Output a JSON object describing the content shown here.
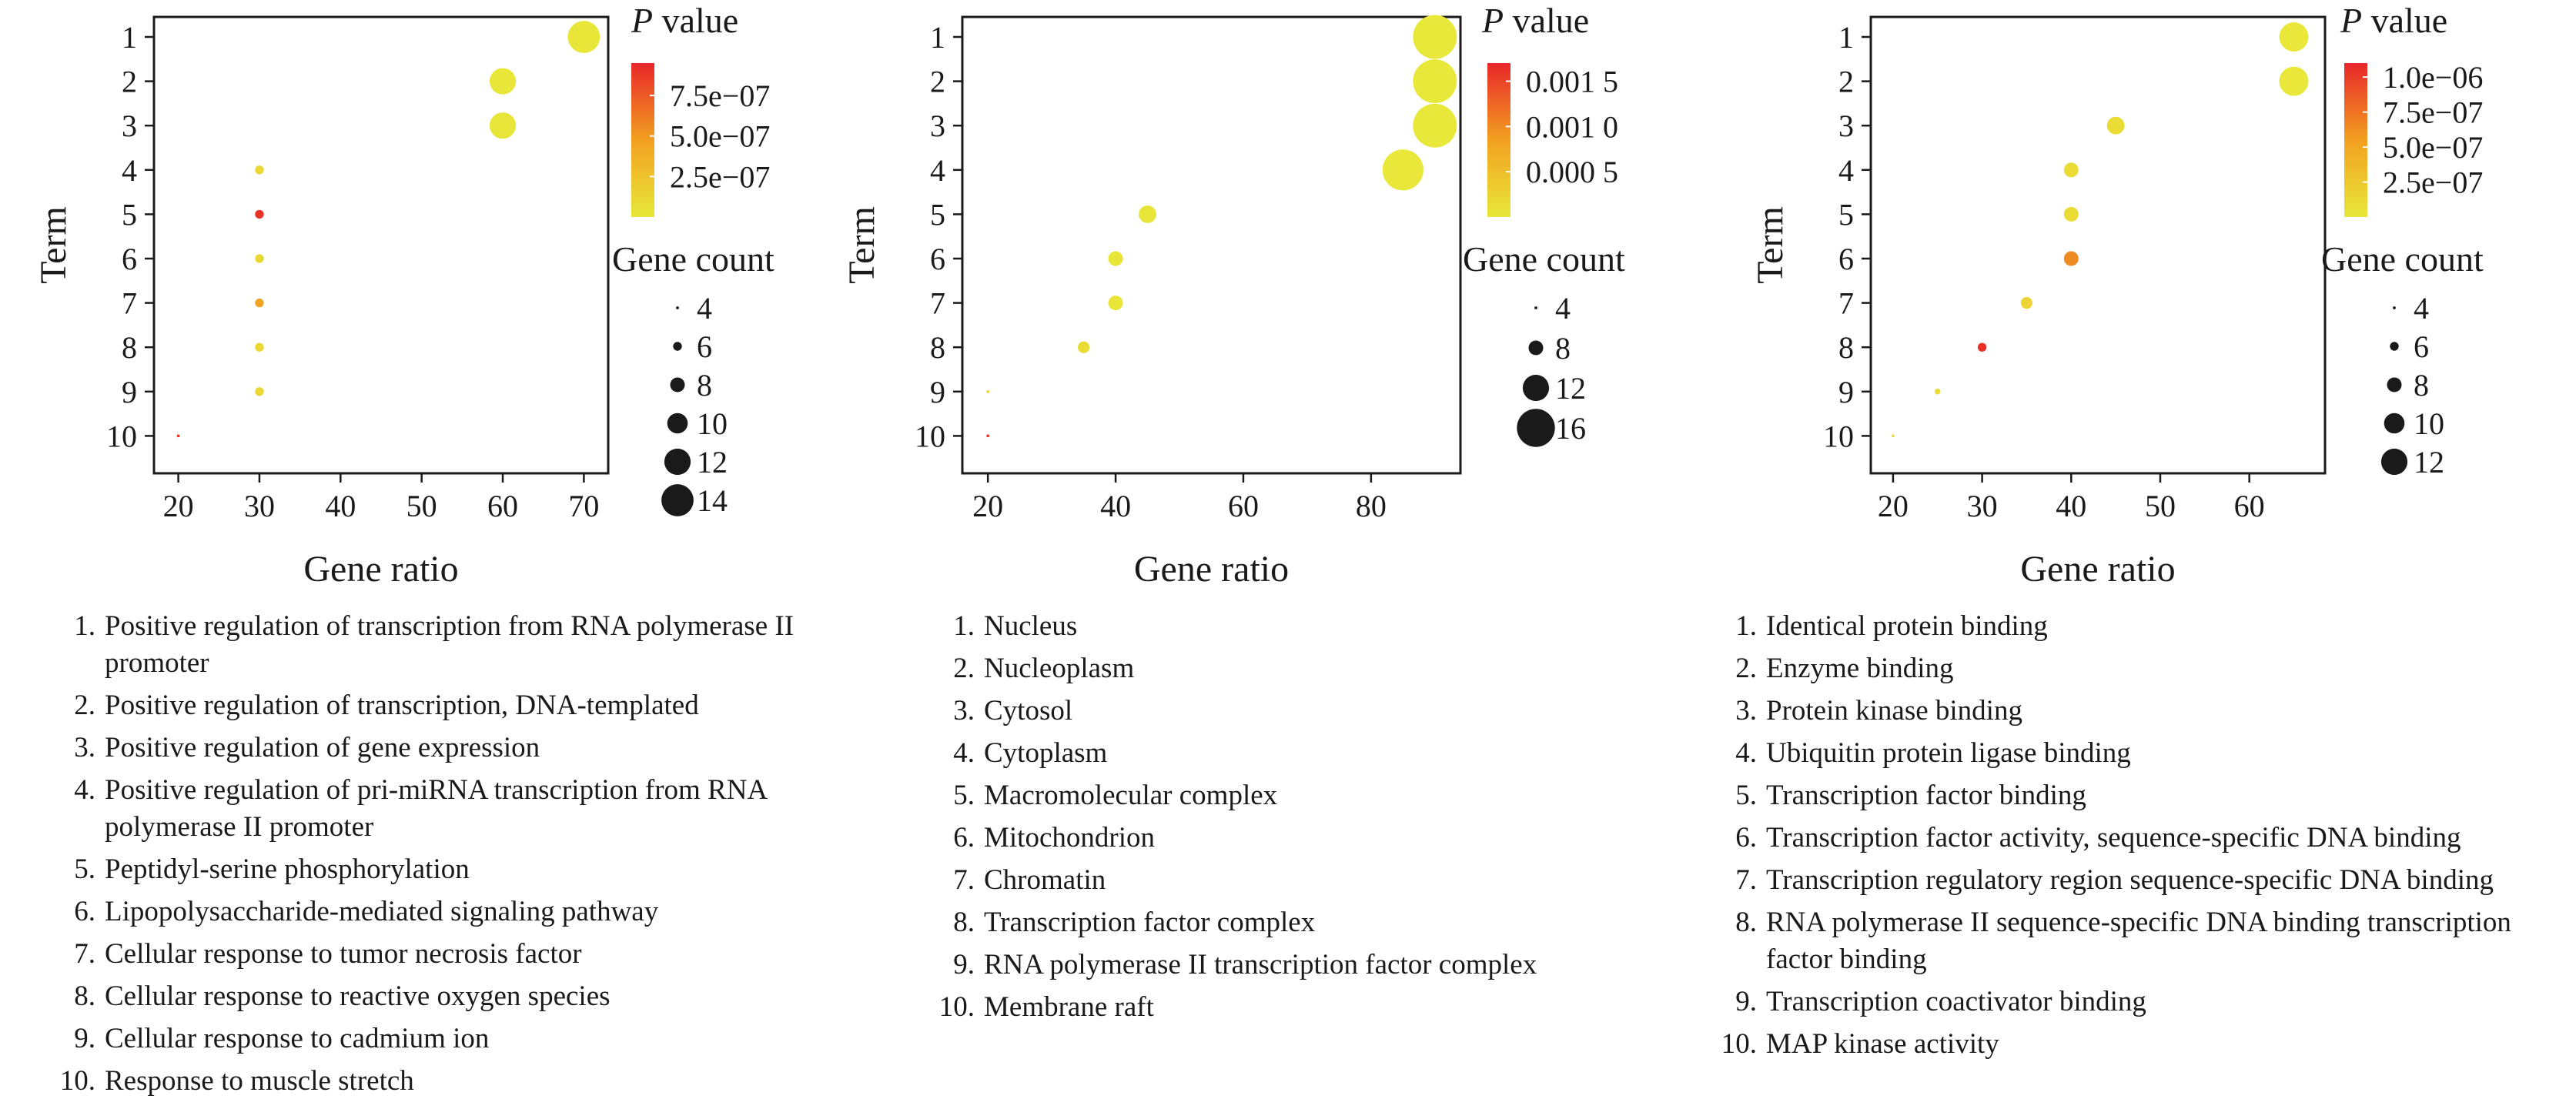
{
  "chart_data": [
    {
      "type": "scatter",
      "xlabel": "Gene ratio",
      "ylabel": "Term",
      "xlim": [
        17,
        73
      ],
      "x_ticks": [
        20,
        30,
        40,
        50,
        60,
        70
      ],
      "y_categories": [
        "1",
        "2",
        "3",
        "4",
        "5",
        "6",
        "7",
        "8",
        "9",
        "10"
      ],
      "points": [
        {
          "term": "1",
          "x": 70,
          "count": 14,
          "p": 1e-08
        },
        {
          "term": "2",
          "x": 60,
          "count": 12,
          "p": 1e-08
        },
        {
          "term": "3",
          "x": 60,
          "count": 12,
          "p": 2e-08
        },
        {
          "term": "4",
          "x": 30,
          "count": 6,
          "p": 1e-07
        },
        {
          "term": "5",
          "x": 30,
          "count": 6,
          "p": 9e-07
        },
        {
          "term": "6",
          "x": 30,
          "count": 6,
          "p": 1e-07
        },
        {
          "term": "7",
          "x": 30,
          "count": 6,
          "p": 4.5e-07
        },
        {
          "term": "8",
          "x": 30,
          "count": 6,
          "p": 1e-07
        },
        {
          "term": "9",
          "x": 30,
          "count": 6,
          "p": 1e-07
        },
        {
          "term": "10",
          "x": 20,
          "count": 4,
          "p": 9e-07
        }
      ],
      "color_legend": {
        "title_italic": "P",
        "title_rest": " value",
        "min": 0,
        "max": 9.5e-07,
        "tick_values": [
          7.5e-07,
          5e-07,
          2.5e-07
        ],
        "ticks": [
          "7.5e−07",
          "5.0e−07",
          "2.5e−07"
        ]
      },
      "size_legend": {
        "title": "Gene count",
        "values": [
          4,
          6,
          8,
          10,
          12,
          14
        ],
        "labels": [
          "4",
          "6",
          "8",
          "10",
          "12",
          "14"
        ]
      },
      "terms": [
        "Positive regulation of transcription from RNA polymerase II promoter",
        "Positive regulation of transcription, DNA-templated",
        "Positive regulation of gene expression",
        "Positive regulation of pri-miRNA transcription from RNA polymerase II promoter",
        "Peptidyl-serine phosphorylation",
        "Lipopolysaccharide-mediated signaling pathway",
        "Cellular response to tumor necrosis factor",
        "Cellular response to reactive oxygen species",
        "Cellular response to cadmium ion",
        "Response to muscle stretch"
      ]
    },
    {
      "type": "scatter",
      "xlabel": "Gene ratio",
      "ylabel": "Term",
      "xlim": [
        16,
        94
      ],
      "x_ticks": [
        20,
        40,
        60,
        80
      ],
      "y_categories": [
        "1",
        "2",
        "3",
        "4",
        "5",
        "6",
        "7",
        "8",
        "9",
        "10"
      ],
      "points": [
        {
          "term": "1",
          "x": 90,
          "count": 18,
          "p": 1e-07
        },
        {
          "term": "2",
          "x": 90,
          "count": 18,
          "p": 1e-07
        },
        {
          "term": "3",
          "x": 90,
          "count": 18,
          "p": 1e-06
        },
        {
          "term": "4",
          "x": 85,
          "count": 17,
          "p": 1e-05
        },
        {
          "term": "5",
          "x": 45,
          "count": 9,
          "p": 3e-05
        },
        {
          "term": "6",
          "x": 40,
          "count": 8,
          "p": 5e-05
        },
        {
          "term": "7",
          "x": 40,
          "count": 8,
          "p": 5e-05
        },
        {
          "term": "8",
          "x": 35,
          "count": 7,
          "p": 0.00015
        },
        {
          "term": "9",
          "x": 20,
          "count": 4,
          "p": 0.00025
        },
        {
          "term": "10",
          "x": 20,
          "count": 4,
          "p": 0.0016
        }
      ],
      "color_legend": {
        "title_italic": "P",
        "title_rest": " value",
        "min": 0,
        "max": 0.0017,
        "tick_values": [
          0.0015,
          0.001,
          0.0005
        ],
        "ticks": [
          "0.001 5",
          "0.001 0",
          "0.000 5"
        ]
      },
      "size_legend": {
        "title": "Gene count",
        "values": [
          4,
          8,
          12,
          16
        ],
        "labels": [
          "4",
          "8",
          "12",
          "16"
        ]
      },
      "terms": [
        "Nucleus",
        "Nucleoplasm",
        "Cytosol",
        "Cytoplasm",
        "Macromolecular complex",
        "Mitochondrion",
        "Chromatin",
        "Transcription factor complex",
        "RNA polymerase II transcription factor complex",
        "Membrane raft"
      ]
    },
    {
      "type": "scatter",
      "xlabel": "Gene ratio",
      "ylabel": "Term",
      "xlim": [
        17.5,
        68.5
      ],
      "x_ticks": [
        20,
        30,
        40,
        50,
        60
      ],
      "y_categories": [
        "1",
        "2",
        "3",
        "4",
        "5",
        "6",
        "7",
        "8",
        "9",
        "10"
      ],
      "points": [
        {
          "term": "1",
          "x": 65,
          "count": 13,
          "p": 1e-08
        },
        {
          "term": "2",
          "x": 65,
          "count": 13,
          "p": 1e-08
        },
        {
          "term": "3",
          "x": 45,
          "count": 9,
          "p": 1e-07
        },
        {
          "term": "4",
          "x": 40,
          "count": 8,
          "p": 1e-07
        },
        {
          "term": "5",
          "x": 40,
          "count": 8,
          "p": 1e-07
        },
        {
          "term": "6",
          "x": 40,
          "count": 8,
          "p": 6.5e-07
        },
        {
          "term": "7",
          "x": 35,
          "count": 7,
          "p": 1.5e-07
        },
        {
          "term": "8",
          "x": 30,
          "count": 6,
          "p": 1.05e-06
        },
        {
          "term": "9",
          "x": 25,
          "count": 5,
          "p": 1e-07
        },
        {
          "term": "10",
          "x": 20,
          "count": 4,
          "p": 1e-07
        }
      ],
      "color_legend": {
        "title_italic": "P",
        "title_rest": " value",
        "min": 0,
        "max": 1.1e-06,
        "tick_values": [
          1e-06,
          7.5e-07,
          5e-07,
          2.5e-07
        ],
        "ticks": [
          "1.0e−06",
          "7.5e−07",
          "5.0e−07",
          "2.5e−07"
        ]
      },
      "size_legend": {
        "title": "Gene count",
        "values": [
          4,
          6,
          8,
          10,
          12
        ],
        "labels": [
          "4",
          "6",
          "8",
          "10",
          "12"
        ]
      },
      "terms": [
        "Identical protein binding",
        "Enzyme binding",
        "Protein kinase binding",
        "Ubiquitin protein ligase binding",
        "Transcription factor binding",
        "Transcription factor activity, sequence-specific DNA binding",
        "Transcription regulatory region sequence-specific DNA binding",
        "RNA polymerase II sequence-specific DNA binding transcription factor binding",
        "Transcription coactivator binding",
        "MAP kinase activity"
      ]
    }
  ],
  "colors": {
    "low": "#e8e83a",
    "mid": "#f2a020",
    "high": "#e8262a",
    "axis": "#1a1a1a"
  }
}
